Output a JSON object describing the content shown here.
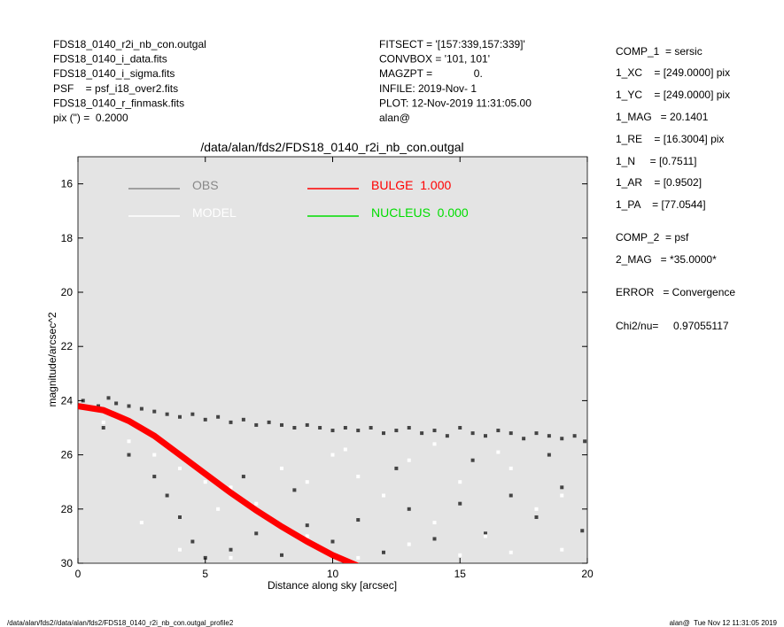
{
  "header_left": [
    "FDS18_0140_r2i_nb_con.outgal",
    "FDS18_0140_i_data.fits",
    "FDS18_0140_i_sigma.fits",
    "PSF    = psf_i18_over2.fits",
    "FDS18_0140_r_finmask.fits",
    "pix (\") =  0.2000"
  ],
  "header_middle": [
    "FITSECT = '[157:339,157:339]'",
    "CONVBOX = '101, 101'",
    "MAGZPT =              0.",
    "INFILE: 2019-Nov- 1",
    "PLOT: 12-Nov-2019 11:31:05.00",
    "alan@"
  ],
  "parameters": [
    "COMP_1  = sersic",
    "1_XC    = [249.0000] pix",
    "1_YC    = [249.0000] pix",
    "1_MAG   = 20.1401",
    "1_RE    = [16.3004] pix",
    "1_N     = [0.7511]",
    "1_AR    = [0.9502]",
    "1_PA    = [77.0544]",
    "COMP_2  = psf",
    "2_MAG   = *35.0000*",
    "ERROR   = Convergence",
    "Chi2/nu=     0.97055117"
  ],
  "footer_left": "/data/alan/fds2//data/alan/fds2/FDS18_0140_r2i_nb_con.outgal_profile2",
  "footer_right": "alan@  Tue Nov 12 11:31:05 2019",
  "chart_data": {
    "type": "scatter",
    "title": "/data/alan/fds2/FDS18_0140_r2i_nb_con.outgal",
    "x_label": "Distance along sky [arcsec]",
    "y_label": "magnitude/arcsec^2",
    "xlim": [
      0,
      20
    ],
    "xticks": [
      0,
      5,
      10,
      15,
      20
    ],
    "ylim": [
      30,
      15
    ],
    "yticks": [
      16,
      18,
      20,
      22,
      24,
      26,
      28,
      30
    ],
    "background": "#e4e4e4",
    "series": [
      {
        "name": "OBS",
        "color": "#444444",
        "legend_color": "#888888",
        "mark": "point",
        "x": [
          0.2,
          0.5,
          0.8,
          1.2,
          1.5,
          2,
          2.5,
          3,
          3.5,
          4,
          4.5,
          5,
          5.5,
          6,
          6.5,
          7,
          7.5,
          8,
          8.5,
          9,
          9.5,
          10,
          10.5,
          11,
          11.5,
          12,
          12.5,
          13,
          13.5,
          14,
          14.5,
          15,
          15.5,
          16,
          16.5,
          17,
          17.5,
          18,
          18.5,
          19,
          19.5,
          19.9,
          1,
          2,
          3,
          3.5,
          4,
          4.5,
          5,
          6,
          7,
          8,
          9,
          10,
          11,
          12,
          13,
          14,
          15,
          16,
          17,
          18,
          19,
          19.8,
          12.5,
          15.5,
          18.5,
          8.5,
          6.5
        ],
        "values": [
          24.0,
          24.3,
          24.2,
          23.9,
          24.1,
          24.2,
          24.3,
          24.4,
          24.5,
          24.6,
          24.5,
          24.7,
          24.6,
          24.8,
          24.7,
          24.9,
          24.8,
          24.9,
          25.0,
          24.9,
          25.0,
          25.1,
          25.0,
          25.1,
          25.0,
          25.2,
          25.1,
          25.0,
          25.2,
          25.1,
          25.3,
          25.0,
          25.2,
          25.3,
          25.1,
          25.2,
          25.4,
          25.2,
          25.3,
          25.4,
          25.3,
          25.5,
          25.0,
          26.0,
          26.8,
          27.5,
          28.3,
          29.2,
          29.8,
          29.5,
          28.9,
          29.7,
          28.6,
          29.2,
          28.4,
          29.6,
          28.0,
          29.1,
          27.8,
          28.9,
          27.5,
          28.3,
          27.2,
          28.8,
          26.5,
          26.2,
          26.0,
          27.3,
          26.8
        ]
      },
      {
        "name": "MODEL",
        "color": "#ffffff",
        "legend_color": "#ffffff",
        "mark": "point",
        "x": [
          1,
          2,
          3,
          4,
          5,
          5.5,
          6,
          7,
          8,
          9,
          10,
          11,
          12,
          13,
          14,
          15,
          16,
          17,
          18,
          19,
          2.5,
          4,
          6,
          9,
          11,
          13,
          15,
          17,
          19,
          10.5,
          14,
          16.5
        ],
        "values": [
          24.8,
          25.5,
          26.0,
          26.5,
          27.0,
          28.0,
          27.2,
          27.8,
          26.5,
          27.0,
          26.0,
          26.8,
          27.5,
          26.2,
          28.5,
          27.0,
          29.0,
          26.5,
          28.0,
          29.5,
          28.5,
          29.5,
          29.8,
          29.0,
          29.8,
          29.3,
          29.7,
          29.6,
          27.5,
          25.8,
          25.6,
          25.9
        ]
      },
      {
        "name": "BULGE  1.000",
        "color": "#ff0000",
        "legend_color": "#ff0000",
        "mark": "line",
        "x": [
          0,
          1,
          2,
          3,
          4,
          5,
          6,
          7,
          8,
          9,
          10,
          11
        ],
        "values": [
          24.2,
          24.35,
          24.75,
          25.3,
          26.0,
          26.7,
          27.4,
          28.05,
          28.65,
          29.2,
          29.7,
          30.1
        ]
      },
      {
        "name": "NUCLEUS  0.000",
        "color": "#00dd00",
        "legend_color": "#00dd00",
        "mark": "line",
        "x": [],
        "values": []
      }
    ]
  }
}
